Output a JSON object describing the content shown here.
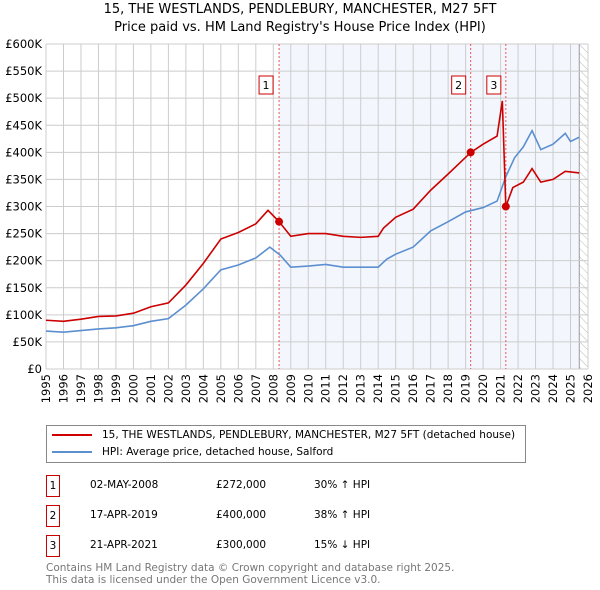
{
  "title": "15, THE WESTLANDS, PENDLEBURY, MANCHESTER, M27 5FT",
  "subtitle": "Price paid vs. HM Land Registry's House Price Index (HPI)",
  "chart_data": {
    "type": "line",
    "ylim": [
      0,
      600000
    ],
    "xlim": [
      1995,
      2026
    ],
    "yticks": [
      "£0",
      "£50K",
      "£100K",
      "£150K",
      "£200K",
      "£250K",
      "£300K",
      "£350K",
      "£400K",
      "£450K",
      "£500K",
      "£550K",
      "£600K"
    ],
    "xticks": [
      "1995",
      "1996",
      "1997",
      "1998",
      "1999",
      "2000",
      "2001",
      "2002",
      "2003",
      "2004",
      "2005",
      "2006",
      "2007",
      "2008",
      "2009",
      "2010",
      "2011",
      "2012",
      "2013",
      "2014",
      "2015",
      "2016",
      "2017",
      "2018",
      "2019",
      "2020",
      "2021",
      "2022",
      "2023",
      "2024",
      "2025",
      "2026"
    ],
    "grid": true,
    "series": [
      {
        "name": "15, THE WESTLANDS, PENDLEBURY, MANCHESTER, M27 5FT (detached house)",
        "color": "#cc0000",
        "x": [
          1995,
          1996,
          1997,
          1998,
          1999,
          2000,
          2001,
          2002,
          2003,
          2004,
          2005,
          2006,
          2007,
          2007.7,
          2008.33,
          2009,
          2010,
          2011,
          2012,
          2013,
          2014,
          2014.3,
          2015,
          2016,
          2017,
          2018,
          2019.3,
          2020,
          2020.8,
          2021.1,
          2021.3,
          2021.7,
          2022.3,
          2022.8,
          2023.3,
          2024,
          2024.7,
          2025.5
        ],
        "y": [
          90000,
          88000,
          92000,
          97000,
          98000,
          103000,
          115000,
          122000,
          155000,
          195000,
          240000,
          252000,
          268000,
          293000,
          272000,
          245000,
          250000,
          250000,
          245000,
          243000,
          245000,
          260000,
          280000,
          295000,
          330000,
          360000,
          400000,
          415000,
          430000,
          495000,
          300000,
          335000,
          345000,
          370000,
          345000,
          350000,
          365000,
          362000
        ]
      },
      {
        "name": "HPI: Average price, detached house, Salford",
        "color": "#5b8fd0",
        "x": [
          1995,
          1996,
          1997,
          1998,
          1999,
          2000,
          2001,
          2002,
          2003,
          2004,
          2005,
          2006,
          2007,
          2007.8,
          2008.4,
          2009,
          2010,
          2011,
          2012,
          2013,
          2014,
          2014.5,
          2015,
          2016,
          2017,
          2018,
          2019,
          2020,
          2020.8,
          2021.3,
          2021.8,
          2022.3,
          2022.8,
          2023.3,
          2024,
          2024.7,
          2025,
          2025.5
        ],
        "y": [
          70000,
          68000,
          71000,
          74000,
          76000,
          80000,
          88000,
          93000,
          118000,
          148000,
          183000,
          192000,
          205000,
          225000,
          210000,
          188000,
          190000,
          193000,
          188000,
          188000,
          188000,
          203000,
          212000,
          225000,
          255000,
          272000,
          290000,
          298000,
          310000,
          355000,
          390000,
          410000,
          440000,
          405000,
          415000,
          435000,
          420000,
          428000
        ]
      }
    ],
    "sales": [
      {
        "label": "1",
        "x": 2008.33,
        "y": 272000,
        "date": "02-MAY-2008",
        "price": "£272,000",
        "hpi": "30% ↑ HPI"
      },
      {
        "label": "2",
        "x": 2019.29,
        "y": 400000,
        "date": "17-APR-2019",
        "price": "£400,000",
        "hpi": "38% ↑ HPI"
      },
      {
        "label": "3",
        "x": 2021.3,
        "y": 300000,
        "date": "21-APR-2021",
        "price": "£300,000",
        "hpi": "15% ↓ HPI"
      }
    ],
    "legend_position": "below"
  },
  "footer": [
    "Contains HM Land Registry data © Crown copyright and database right 2025.",
    "This data is licensed under the Open Government Licence v3.0."
  ]
}
